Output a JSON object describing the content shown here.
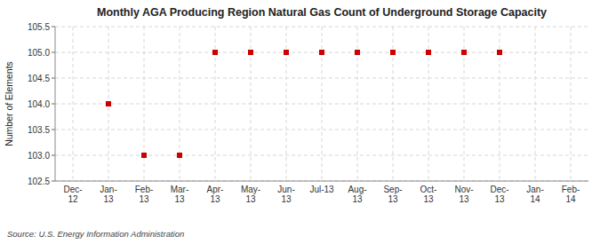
{
  "chart_data": {
    "type": "scatter",
    "title": "Monthly AGA Producing Region Natural Gas Count of Underground Storage Capacity",
    "ylabel": "Number of Elements",
    "source": "Source: U.S. Energy Information Administration",
    "categories": [
      "Dec-\n12",
      "Jan-\n13",
      "Feb-\n13",
      "Mar-\n13",
      "Apr-\n13",
      "May-\n13",
      "Jun-\n13",
      "Jul-13",
      "Aug-\n13",
      "Sep-\n13",
      "Oct-\n13",
      "Nov-\n13",
      "Dec-\n13",
      "Jan-\n14",
      "Feb-\n14"
    ],
    "values": [
      null,
      104.0,
      103.0,
      103.0,
      105.0,
      105.0,
      105.0,
      105.0,
      105.0,
      105.0,
      105.0,
      105.0,
      105.0,
      null,
      null
    ],
    "color": "#cc0000",
    "marker": "square",
    "ylim": [
      102.5,
      105.5
    ],
    "yticks": [
      102.5,
      {
        "value": 103.0,
        "label": "103.0"
      },
      103.5,
      {
        "value": 104.0,
        "label": "104.0"
      },
      104.5,
      {
        "value": 105.0,
        "label": "105.0"
      },
      105.5
    ],
    "grid": true
  }
}
